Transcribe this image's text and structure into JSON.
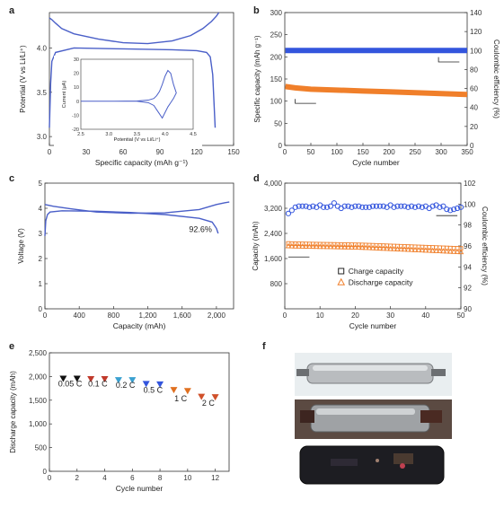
{
  "panels": [
    {
      "id": "a",
      "label": "a"
    },
    {
      "id": "b",
      "label": "b"
    },
    {
      "id": "c",
      "label": "c"
    },
    {
      "id": "d",
      "label": "d"
    },
    {
      "id": "e",
      "label": "e"
    },
    {
      "id": "f",
      "label": "f"
    }
  ],
  "chart_data": [
    {
      "panel": "a",
      "type": "line",
      "xlabel": "Specific capacity (mAh g⁻¹)",
      "ylabel": "Potential (V vs Li/Li⁺)",
      "xlim": [
        0,
        150
      ],
      "ylim": [
        2.9,
        4.4
      ],
      "xticks": [
        "0",
        "30",
        "60",
        "90",
        "120",
        "150"
      ],
      "yticks": [
        "3.0",
        "3.5",
        "4.0"
      ],
      "series": [
        {
          "x": [
            0,
            2,
            5,
            10,
            20,
            40,
            60,
            80,
            100,
            115,
            125,
            132,
            136,
            138
          ],
          "y": [
            4.34,
            4.32,
            4.28,
            4.22,
            4.16,
            4.1,
            4.06,
            4.05,
            4.08,
            4.14,
            4.22,
            4.3,
            4.36,
            4.4
          ]
        },
        {
          "x": [
            0,
            1,
            2,
            5,
            20,
            60,
            100,
            120,
            128,
            131,
            133,
            134,
            135
          ],
          "y": [
            3.1,
            3.6,
            3.85,
            3.95,
            4.0,
            3.99,
            3.98,
            3.97,
            3.95,
            3.9,
            3.7,
            3.4,
            3.1
          ]
        }
      ],
      "inset": {
        "xlabel": "Potential (V vs Li/Li⁺)",
        "ylabel": "Current (μA)",
        "xlim": [
          2.5,
          4.5
        ],
        "ylim": [
          -20,
          30
        ],
        "xticks": [
          "2.5",
          "3.0",
          "3.5",
          "4.0",
          "4.5"
        ],
        "yticks": [
          "-20",
          "-10",
          "0",
          "10",
          "20",
          "30"
        ],
        "x": [
          2.5,
          3.0,
          3.5,
          3.7,
          3.8,
          3.85,
          3.9,
          3.95,
          4.0,
          4.05,
          4.1,
          4.15,
          4.2,
          4.15,
          4.1,
          4.05,
          4.0,
          3.95,
          3.9,
          3.85,
          3.8,
          3.7,
          3.5,
          3.0,
          2.5
        ],
        "y": [
          0,
          0,
          0.2,
          0.8,
          2,
          4,
          7,
          12,
          18,
          22,
          20,
          12,
          6,
          2,
          -1,
          -4,
          -8,
          -12,
          -9,
          -6,
          -3,
          -1,
          0,
          0,
          0
        ]
      }
    },
    {
      "panel": "b",
      "type": "scatter",
      "xlabel": "Cycle number",
      "ylabel": "Specific capacity (mAh g⁻¹)",
      "y2label": "Coulombic efficiency (%)",
      "xlim": [
        0,
        350
      ],
      "ylim": [
        0,
        300
      ],
      "y2lim": [
        0,
        140
      ],
      "xticks": [
        "0",
        "50",
        "100",
        "150",
        "200",
        "250",
        "300",
        "350"
      ],
      "yticks": [
        "0",
        "50",
        "100",
        "150",
        "200",
        "250",
        "300"
      ],
      "y2ticks": [
        "0",
        "20",
        "40",
        "60",
        "80",
        "100",
        "120",
        "140"
      ],
      "series": [
        {
          "axis": "right",
          "color": "#3355dd",
          "x": [
            1,
            350
          ],
          "values": [
            100,
            100
          ]
        },
        {
          "axis": "left",
          "color": "#f07f2a",
          "x": [
            1,
            20,
            50,
            100,
            150,
            200,
            250,
            300,
            350
          ],
          "values": [
            133,
            130,
            127,
            125,
            123,
            121,
            119,
            117,
            115
          ]
        }
      ]
    },
    {
      "panel": "c",
      "type": "line",
      "xlabel": "Capacity (mAh)",
      "ylabel": "Voltage (V)",
      "xlim": [
        0,
        2200
      ],
      "ylim": [
        0,
        5
      ],
      "xticks": [
        "0",
        "400",
        "800",
        "1,200",
        "1,600",
        "2,000"
      ],
      "yticks": [
        "0",
        "1",
        "2",
        "3",
        "4",
        "5"
      ],
      "annotation": "92.6%",
      "series": [
        {
          "x": [
            0,
            100,
            300,
            600,
            1000,
            1400,
            1800,
            2000,
            2100,
            2150
          ],
          "y": [
            4.15,
            4.08,
            3.98,
            3.85,
            3.8,
            3.82,
            3.95,
            4.15,
            4.22,
            4.25
          ]
        },
        {
          "x": [
            0,
            10,
            30,
            60,
            200,
            600,
            1000,
            1400,
            1800,
            1950,
            2000,
            2020
          ],
          "y": [
            2.9,
            3.5,
            3.75,
            3.85,
            3.9,
            3.88,
            3.83,
            3.75,
            3.6,
            3.45,
            3.2,
            3.0
          ]
        }
      ]
    },
    {
      "panel": "d",
      "type": "scatter",
      "xlabel": "Cycle number",
      "ylabel": "Capacity (mAh)",
      "y2label": "Coulombic efficiency (%)",
      "xlim": [
        0,
        50
      ],
      "ylim": [
        0,
        4000
      ],
      "y2lim": [
        90,
        102
      ],
      "xticks": [
        "0",
        "10",
        "20",
        "30",
        "40",
        "50"
      ],
      "yticks": [
        "800",
        "1,600",
        "2,400",
        "3,200",
        "4,000"
      ],
      "y2ticks": [
        "90",
        "92",
        "94",
        "96",
        "98",
        "100",
        "102"
      ],
      "legend": [
        "Charge capacity",
        "Discharge capacity"
      ],
      "series": [
        {
          "name": "Charge capacity",
          "color": "#f07f2a",
          "marker": "square",
          "x": [
            1,
            2,
            3,
            4,
            5,
            6,
            7,
            8,
            9,
            10,
            11,
            12,
            13,
            14,
            15,
            16,
            17,
            18,
            19,
            20,
            21,
            22,
            23,
            24,
            25,
            26,
            27,
            28,
            29,
            30,
            31,
            32,
            33,
            34,
            35,
            36,
            37,
            38,
            39,
            40,
            41,
            42,
            43,
            44,
            45,
            46,
            47,
            48,
            49,
            50
          ],
          "values": [
            2080,
            2075,
            2072,
            2070,
            2068,
            2066,
            2064,
            2062,
            2060,
            2058,
            2056,
            2054,
            2052,
            2050,
            2048,
            2046,
            2044,
            2042,
            2040,
            2038,
            2036,
            2034,
            2030,
            2026,
            2022,
            2018,
            2014,
            2010,
            2006,
            2002,
            1998,
            1994,
            1990,
            1986,
            1982,
            1978,
            1974,
            1970,
            1966,
            1962,
            1958,
            1954,
            1950,
            1946,
            1942,
            1938,
            1934,
            1930,
            1926,
            1922
          ]
        },
        {
          "name": "Discharge capacity",
          "color": "#f07f2a",
          "marker": "triangle",
          "x": [
            1,
            2,
            3,
            4,
            5,
            6,
            7,
            8,
            9,
            10,
            11,
            12,
            13,
            14,
            15,
            16,
            17,
            18,
            19,
            20,
            21,
            22,
            23,
            24,
            25,
            26,
            27,
            28,
            29,
            30,
            31,
            32,
            33,
            34,
            35,
            36,
            37,
            38,
            39,
            40,
            41,
            42,
            43,
            44,
            45,
            46,
            47,
            48,
            49,
            50
          ],
          "values": [
            2000,
            1995,
            1992,
            1990,
            1988,
            1986,
            1984,
            1982,
            1980,
            1978,
            1976,
            1974,
            1972,
            1970,
            1968,
            1966,
            1964,
            1962,
            1960,
            1958,
            1955,
            1950,
            1945,
            1940,
            1935,
            1930,
            1925,
            1920,
            1915,
            1910,
            1905,
            1900,
            1895,
            1890,
            1885,
            1880,
            1875,
            1870,
            1865,
            1860,
            1855,
            1850,
            1845,
            1840,
            1835,
            1830,
            1825,
            1820,
            1815,
            1810
          ]
        },
        {
          "axis": "right",
          "color": "#3355dd",
          "marker": "circle",
          "x": [
            1,
            2,
            3,
            4,
            5,
            6,
            7,
            8,
            9,
            10,
            11,
            12,
            13,
            14,
            15,
            16,
            17,
            18,
            19,
            20,
            21,
            22,
            23,
            24,
            25,
            26,
            27,
            28,
            29,
            30,
            31,
            32,
            33,
            34,
            35,
            36,
            37,
            38,
            39,
            40,
            41,
            42,
            43,
            44,
            45,
            46,
            47,
            48,
            49,
            50
          ],
          "values": [
            99.1,
            99.4,
            99.7,
            99.8,
            99.8,
            99.8,
            99.7,
            99.8,
            99.7,
            99.9,
            99.7,
            99.7,
            99.8,
            100.1,
            99.8,
            99.6,
            99.8,
            99.8,
            99.7,
            99.8,
            99.8,
            99.7,
            99.7,
            99.7,
            99.8,
            99.8,
            99.8,
            99.8,
            99.7,
            99.9,
            99.7,
            99.8,
            99.8,
            99.8,
            99.7,
            99.8,
            99.7,
            99.8,
            99.7,
            99.8,
            99.6,
            99.8,
            99.9,
            99.7,
            99.8,
            99.5,
            99.4,
            99.5,
            99.6,
            99.7
          ]
        }
      ]
    },
    {
      "panel": "e",
      "type": "scatter",
      "xlabel": "Cycle number",
      "ylabel": "Discharge capacity (mAh)",
      "xlim": [
        0,
        13
      ],
      "ylim": [
        0,
        2500
      ],
      "xticks": [
        "0",
        "2",
        "4",
        "6",
        "8",
        "10",
        "12"
      ],
      "yticks": [
        "0",
        "500",
        "1,000",
        "1,500",
        "2,000",
        "2,500"
      ],
      "rate_labels": [
        {
          "text": "0.05 C",
          "x": 1.5,
          "y": 1790
        },
        {
          "text": "0.1 C",
          "x": 3.5,
          "y": 1790
        },
        {
          "text": "0.2 C",
          "x": 5.5,
          "y": 1760
        },
        {
          "text": "0.5 C",
          "x": 7.5,
          "y": 1660
        },
        {
          "text": "1 C",
          "x": 9.5,
          "y": 1480
        },
        {
          "text": "2 C",
          "x": 11.5,
          "y": 1380
        }
      ],
      "x": [
        1,
        2,
        3,
        4,
        5,
        6,
        7,
        8,
        9,
        10,
        11,
        12
      ],
      "values": [
        1960,
        1960,
        1950,
        1950,
        1930,
        1930,
        1850,
        1840,
        1720,
        1700,
        1580,
        1570
      ],
      "colors": [
        "#111111",
        "#111111",
        "#c0392b",
        "#c0392b",
        "#3aa0d0",
        "#3aa0d0",
        "#3355dd",
        "#3355dd",
        "#e07020",
        "#e07020",
        "#d0502a",
        "#d0502a"
      ]
    }
  ]
}
